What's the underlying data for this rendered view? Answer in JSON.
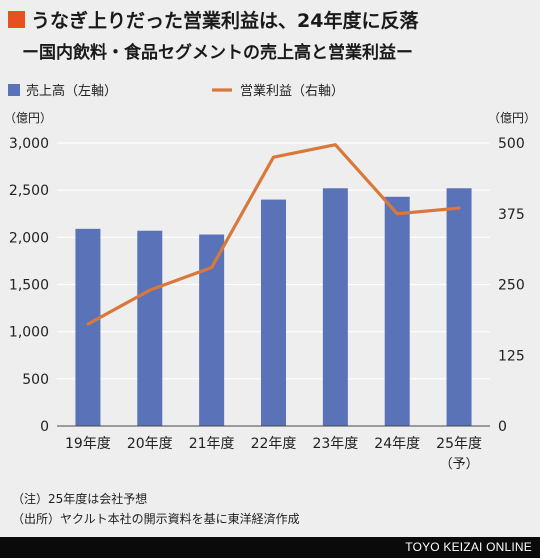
{
  "title": "うなぎ上りだった営業利益は、24年度に反落",
  "subtitle": "ー国内飲料・食品セグメントの売上高と営業利益ー",
  "notes": {
    "note1": "（注）25年度は会社予想",
    "note2": "（出所）ヤクルト本社の開示資料を基に東洋経済作成"
  },
  "footer": "TOYO KEIZAI ONLINE",
  "colors": {
    "bar": "#5a73b8",
    "line": "#d9783a",
    "accent": "#e8501f",
    "grid": "#ffffff"
  },
  "chart_data": {
    "type": "bar",
    "categories": [
      "19年度",
      "20年度",
      "21年度",
      "22年度",
      "23年度",
      "24年度",
      "25年度"
    ],
    "category_sublabels": [
      "",
      "",
      "",
      "",
      "",
      "",
      "（予）"
    ],
    "series": [
      {
        "name": "売上高（左軸）",
        "type": "bar",
        "axis": "left",
        "values": [
          2090,
          2070,
          2030,
          2400,
          2520,
          2430,
          2520
        ]
      },
      {
        "name": "営業利益（右軸）",
        "type": "line",
        "axis": "right",
        "values": [
          180,
          240,
          280,
          475,
          497,
          375,
          385
        ]
      }
    ],
    "y_left": {
      "unit": "（億円）",
      "lim": [
        0,
        3000
      ],
      "ticks": [
        "0",
        "500",
        "1,000",
        "1,500",
        "2,000",
        "2,500",
        "3,000"
      ]
    },
    "y_right": {
      "unit": "（億円）",
      "lim": [
        0,
        500
      ],
      "ticks": [
        "0",
        "125",
        "250",
        "375",
        "500"
      ]
    },
    "grid": true,
    "legend": "top-left"
  }
}
